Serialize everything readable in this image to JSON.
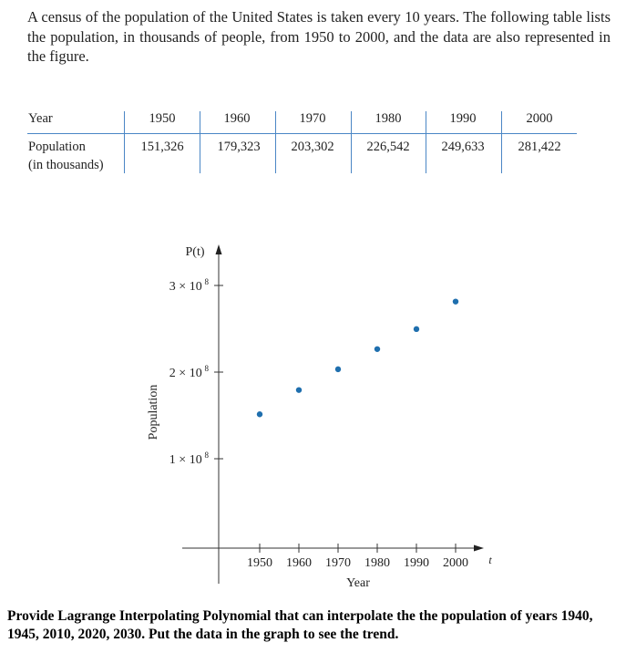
{
  "intro_text": "A census of the population of the United States is taken every 10 years. The following table lists the population, in thousands of people, from 1950 to 2000, and the data are also represented in the figure.",
  "table": {
    "row1_label": "Year",
    "row2_label_line1": "Population",
    "row2_label_line2": "(in thousands)",
    "years": [
      "1950",
      "1960",
      "1970",
      "1980",
      "1990",
      "2000"
    ],
    "populations": [
      "151,326",
      "179,323",
      "203,302",
      "226,542",
      "249,633",
      "281,422"
    ],
    "rule_color": "#4a86c5"
  },
  "chart_data": {
    "type": "scatter",
    "x": [
      1950,
      1960,
      1970,
      1980,
      1990,
      2000
    ],
    "y": [
      151326000,
      179323000,
      203302000,
      226542000,
      249633000,
      281422000
    ],
    "ylabel": "Population",
    "ylabel_top": "P(t)",
    "xlabel": "Year",
    "xaxis_var": "t",
    "x_ticks": [
      "1950",
      "1960",
      "1970",
      "1980",
      "1990",
      "2000"
    ],
    "y_ticks": [
      {
        "value": 100000000,
        "coef": "1 × 10",
        "exp": "8"
      },
      {
        "value": 200000000,
        "coef": "2 × 10",
        "exp": "8"
      },
      {
        "value": 300000000,
        "coef": "3 × 10",
        "exp": "8"
      }
    ],
    "point_color": "#1f6fae",
    "grid": false
  },
  "question_text": "Provide Lagrange Interpolating Polynomial that can interpolate the the population of years 1940, 1945, 2010, 2020, 2030. Put the data in the graph to see the trend."
}
